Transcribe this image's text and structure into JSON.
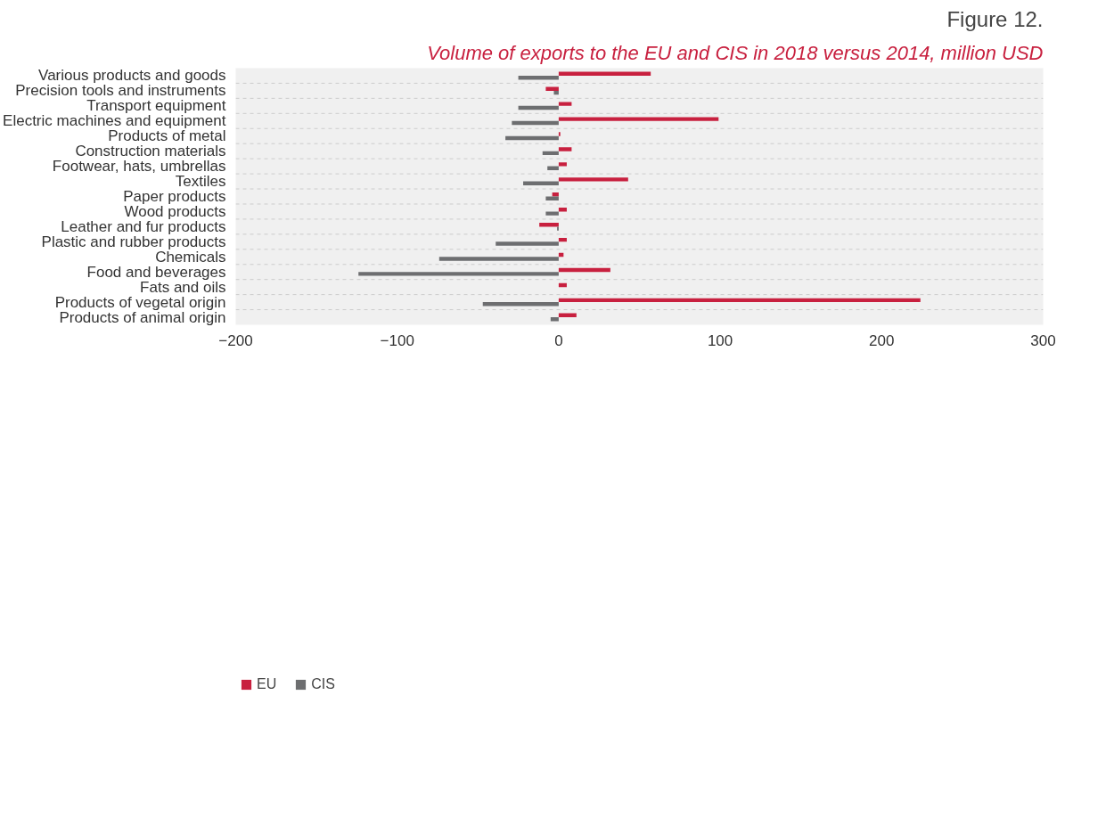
{
  "chart_data": {
    "type": "bar",
    "orientation": "horizontal",
    "title": "Figure 12.",
    "subtitle": "Volume of exports to the EU and CIS in 2018 versus 2014, million USD",
    "categories": [
      "Various products and goods",
      "Precision tools and instruments",
      "Transport equipment",
      "Electric machines and equipment",
      "Products of metal",
      "Construction materials",
      "Footwear, hats, umbrellas",
      "Textiles",
      "Paper products",
      "Wood products",
      "Leather and fur products",
      "Plastic and rubber products",
      "Chemicals",
      "Food and beverages",
      "Fats and oils",
      "Products of vegetal origin",
      "Products of animal origin"
    ],
    "series": [
      {
        "name": "EU",
        "color": "#c8203f",
        "values": [
          57,
          -8,
          8,
          99,
          1,
          8,
          5,
          43,
          -4,
          5,
          -12,
          5,
          3,
          32,
          5,
          224,
          11
        ]
      },
      {
        "name": "CIS",
        "color": "#6d6e70",
        "values": [
          -25,
          -3,
          -25,
          -29,
          -33,
          -10,
          -7,
          -22,
          -8,
          -8,
          -1,
          -39,
          -74,
          -124,
          null,
          -47,
          -5
        ]
      }
    ],
    "xlim": [
      -200,
      300
    ],
    "xticks": [
      -200,
      -100,
      0,
      100,
      200,
      300
    ],
    "grid": "y",
    "legend": "bottom left"
  }
}
